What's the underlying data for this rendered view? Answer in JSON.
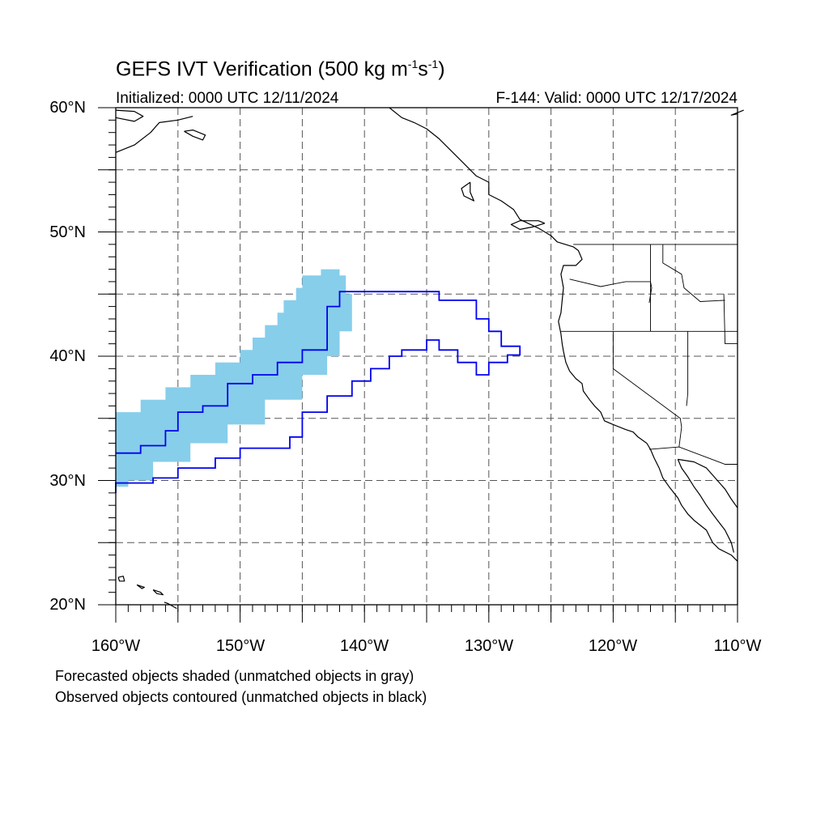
{
  "title": {
    "main": "GEFS IVT Verification (500 kg m",
    "exp1": "-1",
    "mid": "s",
    "exp2": "-1",
    "end": ")"
  },
  "initialized": "Initialized: 0000 UTC 12/11/2024",
  "valid": "F-144: Valid: 0000 UTC 12/17/2024",
  "lat_labels": [
    "60°N",
    "50°N",
    "40°N",
    "30°N",
    "20°N"
  ],
  "lon_labels": [
    "160°W",
    "150°W",
    "140°W",
    "130°W",
    "120°W",
    "110°W"
  ],
  "notes": [
    "Forecasted objects shaded (unmatched objects in gray)",
    "Observed objects contoured (unmatched objects in black)"
  ],
  "colors": {
    "forecast_fill": "#87ceeb",
    "observed_contour": "#0000ee",
    "coast": "#000000",
    "grid": "#555555"
  },
  "map": {
    "lon_range": [
      -160,
      -110
    ],
    "lat_range": [
      20,
      60
    ],
    "projection": "cylindrical-equidistant",
    "forecast_object": [
      [
        -160,
        35.5
      ],
      [
        -158,
        36.5
      ],
      [
        -156,
        37.5
      ],
      [
        -154,
        38.5
      ],
      [
        -152,
        39.5
      ],
      [
        -150,
        40.5
      ],
      [
        -149,
        41.5
      ],
      [
        -148,
        42.5
      ],
      [
        -147,
        43.5
      ],
      [
        -146.5,
        44.5
      ],
      [
        -145.5,
        45.5
      ],
      [
        -145,
        46.5
      ],
      [
        -143.5,
        47
      ],
      [
        -142,
        46.5
      ],
      [
        -141.5,
        45
      ],
      [
        -141,
        43.5
      ],
      [
        -141,
        42
      ],
      [
        -142,
        40
      ],
      [
        -143,
        38.5
      ],
      [
        -145,
        36.5
      ],
      [
        -148,
        34.5
      ],
      [
        -151,
        33
      ],
      [
        -154,
        31.5
      ],
      [
        -157,
        30
      ],
      [
        -159,
        29.5
      ],
      [
        -160,
        29.8
      ]
    ],
    "observed_object": [
      [
        -160,
        32.2
      ],
      [
        -158,
        32.8
      ],
      [
        -156,
        34
      ],
      [
        -155,
        35.5
      ],
      [
        -153,
        36
      ],
      [
        -151,
        37.8
      ],
      [
        -149,
        38.5
      ],
      [
        -147,
        39.5
      ],
      [
        -145,
        40.5
      ],
      [
        -143,
        41.5
      ],
      [
        -143,
        44
      ],
      [
        -142,
        45.2
      ],
      [
        -135,
        45.2
      ],
      [
        -134,
        44.5
      ],
      [
        -131,
        43
      ],
      [
        -130,
        42
      ],
      [
        -129,
        40.8
      ],
      [
        -127.5,
        40.1
      ],
      [
        -128.5,
        39.5
      ],
      [
        -130,
        38.5
      ],
      [
        -131,
        39.5
      ],
      [
        -132.5,
        40.5
      ],
      [
        -134,
        41.3
      ],
      [
        -135,
        40.5
      ],
      [
        -137,
        40
      ],
      [
        -138,
        39
      ],
      [
        -139.5,
        38
      ],
      [
        -141,
        36.8
      ],
      [
        -143,
        35.5
      ],
      [
        -145,
        33.5
      ],
      [
        -146,
        32.6
      ],
      [
        -148,
        32.6
      ],
      [
        -150,
        31.8
      ],
      [
        -152,
        31
      ],
      [
        -155,
        30.2
      ],
      [
        -157,
        29.8
      ],
      [
        -160,
        29
      ]
    ],
    "coastlines": [
      [
        [
          -138,
          60
        ],
        [
          -137,
          59.2
        ],
        [
          -136,
          58.8
        ],
        [
          -135,
          58.3
        ],
        [
          -134,
          57.5
        ],
        [
          -133,
          56.5
        ],
        [
          -132,
          55.5
        ],
        [
          -131,
          54.5
        ],
        [
          -130,
          54
        ],
        [
          -130,
          53
        ],
        [
          -129,
          52.5
        ],
        [
          -128,
          51.8
        ],
        [
          -127.5,
          51
        ],
        [
          -126,
          50.3
        ],
        [
          -125,
          49.7
        ],
        [
          -124.5,
          49.2
        ],
        [
          -123.2,
          48.8
        ],
        [
          -122.8,
          48.5
        ],
        [
          -122.5,
          47.8
        ],
        [
          -123,
          47.3
        ],
        [
          -124,
          47.3
        ],
        [
          -124.2,
          46.6
        ],
        [
          -124,
          45.5
        ],
        [
          -124.1,
          44.5
        ],
        [
          -124.2,
          43.5
        ],
        [
          -124.4,
          42.8
        ],
        [
          -124.2,
          41.8
        ],
        [
          -124.1,
          41
        ],
        [
          -124,
          40.4
        ],
        [
          -123.8,
          39.5
        ],
        [
          -123.5,
          38.8
        ],
        [
          -123,
          38.2
        ],
        [
          -122.5,
          37.8
        ],
        [
          -122.4,
          37.2
        ],
        [
          -121.9,
          36.5
        ],
        [
          -121.5,
          36
        ],
        [
          -121,
          35.5
        ],
        [
          -120.7,
          34.8
        ],
        [
          -120,
          34.5
        ],
        [
          -119,
          34.1
        ],
        [
          -118.4,
          33.9
        ],
        [
          -118,
          33.5
        ],
        [
          -117.3,
          33
        ],
        [
          -117,
          32.5
        ],
        [
          -116.7,
          31.8
        ],
        [
          -116.3,
          31
        ],
        [
          -116,
          30.2
        ],
        [
          -115.5,
          29.5
        ],
        [
          -114.8,
          28.6
        ],
        [
          -114.5,
          28
        ],
        [
          -114,
          27.3
        ],
        [
          -113.5,
          26.8
        ],
        [
          -112.5,
          26
        ],
        [
          -112,
          25
        ],
        [
          -111.5,
          24.5
        ],
        [
          -110.5,
          24
        ],
        [
          -110,
          23.5
        ]
      ],
      [
        [
          -114.8,
          31.7
        ],
        [
          -114.5,
          31
        ],
        [
          -114,
          30.3
        ],
        [
          -113.5,
          29.5
        ],
        [
          -113,
          28.8
        ],
        [
          -112.5,
          28
        ],
        [
          -112,
          27.3
        ],
        [
          -111,
          26
        ],
        [
          -110.5,
          25
        ],
        [
          -110.3,
          24.2
        ]
      ],
      [
        [
          -110,
          27.8
        ],
        [
          -110.5,
          28.5
        ],
        [
          -111,
          29.3
        ],
        [
          -111.8,
          30.2
        ],
        [
          -112.5,
          31
        ],
        [
          -113.5,
          31.5
        ],
        [
          -114.8,
          31.7
        ]
      ],
      [
        [
          -125.5,
          50.7
        ],
        [
          -126.5,
          50.4
        ],
        [
          -127.5,
          50.2
        ],
        [
          -128.2,
          50.6
        ],
        [
          -127.5,
          50.9
        ],
        [
          -126,
          50.9
        ],
        [
          -125.5,
          50.7
        ]
      ],
      [
        [
          -131.5,
          54
        ],
        [
          -132.2,
          53.5
        ],
        [
          -132,
          52.9
        ],
        [
          -131.2,
          52.5
        ],
        [
          -131.5,
          53.2
        ],
        [
          -131.5,
          54
        ]
      ],
      [
        [
          -160,
          59.2
        ],
        [
          -158.5,
          58.9
        ],
        [
          -157.8,
          59.3
        ],
        [
          -158.5,
          59.7
        ],
        [
          -160,
          59.8
        ]
      ],
      [
        [
          -160,
          56.4
        ],
        [
          -158.5,
          57
        ],
        [
          -157.2,
          58
        ],
        [
          -156.5,
          58.8
        ],
        [
          -155,
          59
        ],
        [
          -153.8,
          59.3
        ]
      ],
      [
        [
          -154.5,
          58.1
        ],
        [
          -153.8,
          57.7
        ],
        [
          -153,
          57.4
        ],
        [
          -152.8,
          57.8
        ],
        [
          -153.8,
          58.2
        ],
        [
          -154.5,
          58.1
        ]
      ],
      [
        [
          -110,
          59.5
        ],
        [
          -110.5,
          59.4
        ],
        [
          -109.5,
          59.8
        ]
      ],
      [
        [
          -159.8,
          22.2
        ],
        [
          -159.4,
          22.3
        ],
        [
          -159.3,
          21.9
        ],
        [
          -159.7,
          21.9
        ],
        [
          -159.8,
          22.2
        ]
      ],
      [
        [
          -158.3,
          21.6
        ],
        [
          -157.7,
          21.4
        ],
        [
          -157.9,
          21.3
        ],
        [
          -158.3,
          21.6
        ]
      ],
      [
        [
          -157,
          21.2
        ],
        [
          -156.7,
          20.9
        ],
        [
          -156.2,
          20.8
        ],
        [
          -156.4,
          21
        ],
        [
          -157,
          21.2
        ]
      ],
      [
        [
          -156.1,
          20.2
        ],
        [
          -155.8,
          20.1
        ],
        [
          -155.1,
          19.7
        ]
      ]
    ],
    "borders": [
      [
        [
          -123.2,
          49
        ],
        [
          -110,
          49
        ]
      ],
      [
        [
          -123.5,
          46.2
        ],
        [
          -121,
          45.6
        ],
        [
          -119,
          46
        ],
        [
          -117,
          46
        ],
        [
          -116.9,
          45.5
        ],
        [
          -117.1,
          44.3
        ]
      ],
      [
        [
          -124.2,
          42
        ],
        [
          -110,
          42
        ]
      ],
      [
        [
          -117,
          49
        ],
        [
          -117,
          44.3
        ],
        [
          -117,
          42
        ]
      ],
      [
        [
          -116,
          49
        ],
        [
          -116,
          47.5
        ],
        [
          -114.5,
          46.6
        ],
        [
          -114.3,
          45.5
        ],
        [
          -113,
          44.4
        ],
        [
          -111,
          44.5
        ]
      ],
      [
        [
          -120,
          42
        ],
        [
          -120,
          39
        ],
        [
          -114.6,
          35
        ],
        [
          -114.5,
          34.3
        ],
        [
          -114.7,
          32.7
        ]
      ],
      [
        [
          -114,
          42
        ],
        [
          -114,
          37
        ],
        [
          -114.1,
          36
        ]
      ],
      [
        [
          -117.1,
          32.5
        ],
        [
          -114.7,
          32.7
        ],
        [
          -111,
          31.3
        ],
        [
          -110,
          31.3
        ]
      ],
      [
        [
          -111.1,
          45
        ],
        [
          -111,
          41
        ],
        [
          -110,
          41
        ]
      ]
    ]
  }
}
